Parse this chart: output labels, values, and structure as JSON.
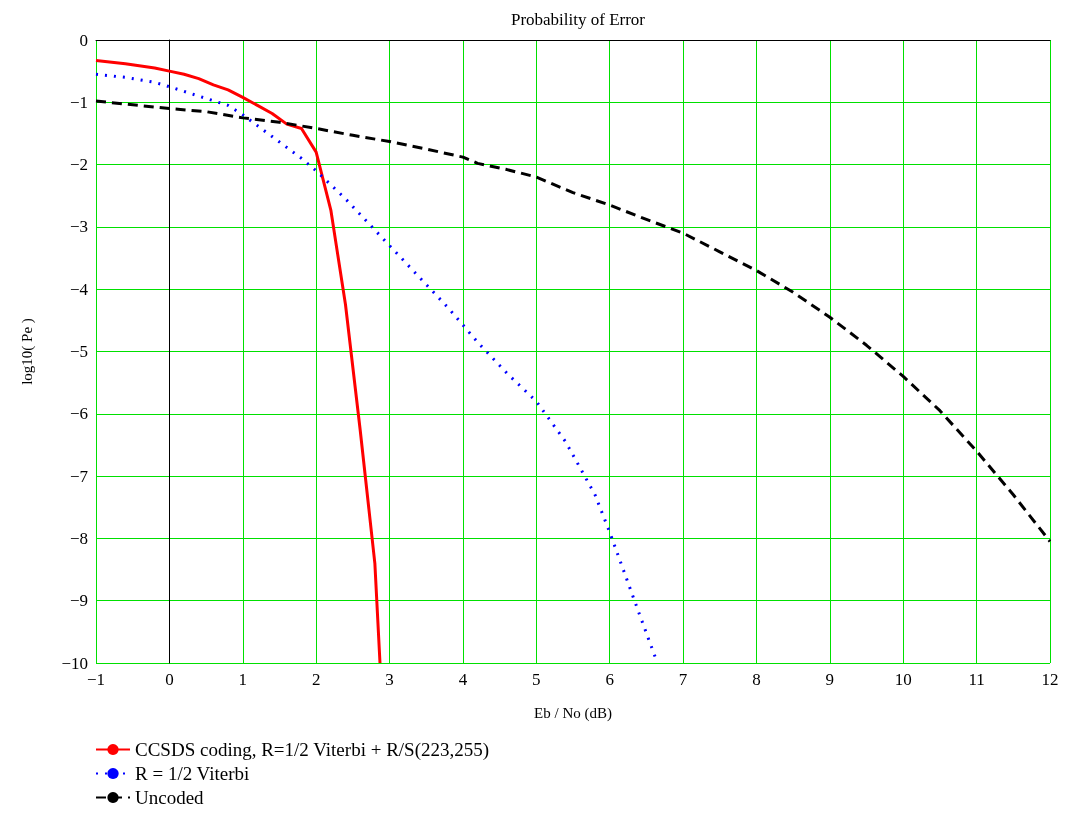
{
  "chart_data": {
    "type": "line",
    "title": "Probability of Error",
    "xlabel": "Eb / No (dB)",
    "ylabel": "log10( Pe )",
    "xlim": [
      -1,
      12
    ],
    "xticks": [
      {
        "value": -1,
        "label": "−1"
      },
      0,
      1,
      2,
      3,
      4,
      5,
      6,
      7,
      8,
      9,
      10,
      11,
      12
    ],
    "ylim": [
      -10,
      0
    ],
    "yticks": [
      {
        "value": -10,
        "label": "−10"
      },
      {
        "value": -9,
        "label": "−9"
      },
      {
        "value": -8,
        "label": "−8"
      },
      {
        "value": -7,
        "label": "−7"
      },
      {
        "value": -6,
        "label": "−6"
      },
      {
        "value": -5,
        "label": "−5"
      },
      {
        "value": -4,
        "label": "−4"
      },
      {
        "value": -3,
        "label": "−3"
      },
      {
        "value": -2,
        "label": "−2"
      },
      {
        "value": -1,
        "label": "−1"
      },
      0
    ],
    "grid": true,
    "legend": "bottom left",
    "marker": "none",
    "series": [
      {
        "name": "CCSDS coding, R=1/2 Viterbi + R/S(223,255)",
        "color": "#ff0000",
        "line_style": "solid",
        "x": [
          -1,
          -0.6,
          -0.2,
          0,
          0.2,
          0.4,
          0.6,
          0.8,
          1,
          1.2,
          1.4,
          1.6,
          1.8,
          2,
          2.2,
          2.4,
          2.6,
          2.8,
          2.87
        ],
        "values": [
          -0.33,
          -0.38,
          -0.45,
          -0.5,
          -0.55,
          -0.62,
          -0.72,
          -0.8,
          -0.92,
          -1.05,
          -1.18,
          -1.35,
          -1.42,
          -1.8,
          -2.73,
          -4.25,
          -6.26,
          -8.4,
          -10
        ]
      },
      {
        "name": "R = 1/2 Viterbi",
        "color": "#0000ff",
        "line_style": "dotted",
        "x": [
          -1,
          -0.6,
          -0.2,
          0,
          0.4,
          0.8,
          1,
          1.4,
          1.8,
          2,
          2.4,
          2.8,
          3,
          3.4,
          3.8,
          4.2,
          4.6,
          5,
          5.4,
          5.8,
          6,
          6.2,
          6.4,
          6.65
        ],
        "values": [
          -0.55,
          -0.6,
          -0.68,
          -0.75,
          -0.9,
          -1.05,
          -1.2,
          -1.55,
          -1.9,
          -2.1,
          -2.55,
          -3.05,
          -3.3,
          -3.8,
          -4.3,
          -4.85,
          -5.35,
          -5.8,
          -6.45,
          -7.3,
          -7.9,
          -8.55,
          -9.2,
          -10
        ]
      },
      {
        "name": "Uncoded",
        "color": "#000000",
        "line_style": "dashed",
        "x": [
          -1,
          0,
          0.5,
          1,
          1.5,
          2,
          2.5,
          3,
          3.5,
          4,
          4.2,
          4.6,
          5,
          5.5,
          6,
          6.5,
          7,
          7.5,
          8,
          8.5,
          9,
          9.5,
          10,
          10.5,
          11,
          11.5,
          12
        ],
        "values": [
          -0.98,
          -1.1,
          -1.15,
          -1.25,
          -1.32,
          -1.42,
          -1.53,
          -1.63,
          -1.75,
          -1.88,
          -1.98,
          -2.08,
          -2.2,
          -2.45,
          -2.65,
          -2.88,
          -3.1,
          -3.4,
          -3.7,
          -4.05,
          -4.45,
          -4.9,
          -5.4,
          -5.95,
          -6.6,
          -7.3,
          -8.05
        ]
      }
    ]
  }
}
